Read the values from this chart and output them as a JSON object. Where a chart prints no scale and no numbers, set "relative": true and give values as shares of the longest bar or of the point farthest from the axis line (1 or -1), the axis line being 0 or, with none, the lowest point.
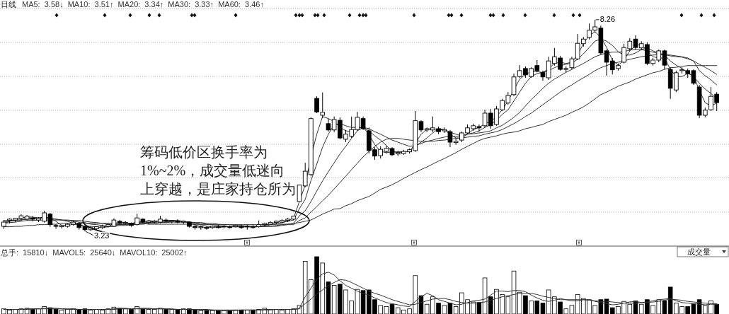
{
  "chart_data": [
    {
      "type": "candlestick",
      "title": "日线",
      "subtitle": "MA5: 3.58↓ MA10: 3.51↑ MA20: 3.34↑ MA30: 3.33↑ MA60: 3.46↑",
      "grid": "y",
      "color": "#000000",
      "ylim": [
        2.88,
        8.52
      ],
      "yticks": [
        {
          "value": 3.69,
          "label": null
        },
        {
          "value": 4.5,
          "label": null
        },
        {
          "value": 5.3,
          "label": null
        },
        {
          "value": 6.11,
          "label": null
        },
        {
          "value": 6.91,
          "label": null
        },
        {
          "value": 7.72,
          "label": null
        },
        {
          "value": 8.52,
          "label": null
        }
      ],
      "categories": [
        null,
        null,
        null,
        null,
        null,
        null,
        null,
        null,
        null,
        null,
        null,
        null,
        null,
        null,
        null,
        null,
        null,
        null,
        null,
        null,
        null,
        null,
        null,
        null,
        null,
        null,
        null,
        null,
        null,
        null,
        null,
        null,
        null,
        null,
        null,
        null,
        null,
        null,
        null,
        null,
        null,
        null,
        null,
        null,
        null,
        null,
        null,
        null,
        null,
        null,
        null,
        null,
        null,
        null,
        null,
        null,
        null,
        null,
        null,
        null,
        null,
        null,
        null,
        null,
        null,
        null,
        null,
        null,
        null,
        null,
        null,
        null,
        null,
        null,
        null,
        null,
        null,
        null,
        null,
        null,
        null,
        null,
        null,
        null,
        null,
        null,
        null,
        null,
        null,
        null,
        null,
        null,
        null,
        null,
        null,
        null,
        null,
        null,
        null,
        null,
        null,
        null,
        null,
        null,
        null,
        null,
        null,
        null,
        null,
        null,
        null,
        null,
        null,
        null,
        null,
        null,
        null,
        null,
        null,
        null,
        null,
        null,
        null,
        null
      ],
      "ohlc": [
        [
          3.35,
          3.5,
          3.29,
          3.45
        ],
        [
          3.49,
          3.54,
          3.42,
          3.52
        ],
        [
          3.5,
          3.55,
          3.45,
          3.54
        ],
        [
          3.54,
          3.64,
          3.49,
          3.6
        ],
        [
          3.52,
          3.62,
          3.49,
          3.59
        ],
        [
          3.55,
          3.59,
          3.47,
          3.52
        ],
        [
          3.5,
          3.57,
          3.45,
          3.54
        ],
        [
          3.47,
          3.72,
          3.44,
          3.67
        ],
        [
          3.64,
          3.67,
          3.34,
          3.39
        ],
        [
          3.37,
          3.4,
          3.29,
          3.35
        ],
        [
          3.34,
          3.39,
          3.3,
          3.37
        ],
        [
          3.35,
          3.42,
          3.32,
          3.4
        ],
        [
          3.4,
          3.49,
          3.37,
          3.45
        ],
        [
          3.42,
          3.45,
          3.27,
          3.32
        ],
        [
          3.34,
          3.37,
          3.23,
          3.27
        ],
        [
          3.27,
          3.35,
          3.24,
          3.32
        ],
        [
          3.29,
          3.35,
          3.26,
          3.34
        ],
        [
          3.32,
          3.39,
          3.29,
          3.35
        ],
        [
          3.35,
          3.42,
          3.32,
          3.39
        ],
        [
          3.35,
          3.54,
          3.34,
          3.5
        ],
        [
          3.47,
          3.5,
          3.39,
          3.42
        ],
        [
          3.42,
          3.47,
          3.39,
          3.44
        ],
        [
          3.42,
          3.44,
          3.34,
          3.37
        ],
        [
          3.39,
          3.65,
          3.37,
          3.55
        ],
        [
          3.52,
          3.54,
          3.42,
          3.45
        ],
        [
          3.44,
          3.49,
          3.4,
          3.47
        ],
        [
          3.45,
          3.5,
          3.42,
          3.47
        ],
        [
          3.45,
          3.6,
          3.42,
          3.52
        ],
        [
          3.5,
          3.54,
          3.44,
          3.47
        ],
        [
          3.47,
          3.5,
          3.42,
          3.49
        ],
        [
          3.47,
          3.52,
          3.42,
          3.45
        ],
        [
          3.45,
          3.49,
          3.4,
          3.47
        ],
        [
          3.45,
          3.47,
          3.32,
          3.35
        ],
        [
          3.35,
          3.4,
          3.27,
          3.32
        ],
        [
          3.32,
          3.37,
          3.27,
          3.34
        ],
        [
          3.32,
          3.35,
          3.27,
          3.3
        ],
        [
          3.32,
          3.37,
          3.29,
          3.35
        ],
        [
          3.34,
          3.39,
          3.3,
          3.32
        ],
        [
          3.34,
          3.39,
          3.3,
          3.35
        ],
        [
          3.34,
          3.37,
          3.3,
          3.32
        ],
        [
          3.34,
          3.39,
          3.32,
          3.37
        ],
        [
          3.35,
          3.39,
          3.29,
          3.32
        ],
        [
          3.34,
          3.39,
          3.27,
          3.35
        ],
        [
          3.34,
          3.39,
          3.29,
          3.32
        ],
        [
          3.34,
          3.49,
          3.32,
          3.39
        ],
        [
          3.39,
          3.44,
          3.35,
          3.42
        ],
        [
          3.4,
          3.47,
          3.39,
          3.44
        ],
        [
          3.44,
          3.49,
          3.4,
          3.47
        ],
        [
          3.45,
          3.52,
          3.42,
          3.49
        ],
        [
          3.49,
          3.55,
          3.45,
          3.52
        ],
        [
          3.52,
          3.6,
          3.49,
          3.59
        ],
        [
          3.94,
          4.33,
          3.94,
          4.33
        ],
        [
          4.31,
          4.86,
          4.28,
          4.66
        ],
        [
          4.58,
          5.94,
          4.54,
          5.91
        ],
        [
          6.39,
          6.44,
          6.04,
          6.07
        ],
        [
          5.99,
          6.53,
          5.92,
          6.06
        ],
        [
          5.79,
          5.91,
          5.6,
          5.64
        ],
        [
          5.64,
          5.96,
          5.59,
          5.89
        ],
        [
          5.87,
          5.94,
          5.42,
          5.45
        ],
        [
          5.42,
          5.64,
          5.35,
          5.54
        ],
        [
          5.49,
          5.96,
          5.45,
          5.65
        ],
        [
          5.65,
          6.07,
          5.62,
          5.94
        ],
        [
          5.91,
          5.96,
          5.64,
          5.67
        ],
        [
          5.62,
          5.7,
          5.08,
          5.15
        ],
        [
          5.17,
          5.23,
          4.93,
          5.02
        ],
        [
          5.03,
          5.25,
          4.96,
          5.18
        ],
        [
          5.13,
          5.27,
          5.08,
          5.2
        ],
        [
          5.2,
          5.23,
          5.02,
          5.05
        ],
        [
          5.07,
          5.15,
          5.02,
          5.1
        ],
        [
          5.08,
          5.17,
          5.05,
          5.13
        ],
        [
          5.12,
          5.2,
          5.08,
          5.17
        ],
        [
          5.15,
          6.09,
          5.12,
          5.86
        ],
        [
          5.84,
          5.87,
          5.59,
          5.64
        ],
        [
          5.64,
          5.7,
          5.59,
          5.67
        ],
        [
          5.64,
          5.96,
          5.59,
          5.69
        ],
        [
          5.67,
          5.72,
          5.54,
          5.6
        ],
        [
          5.62,
          5.7,
          5.57,
          5.65
        ],
        [
          5.6,
          5.64,
          5.23,
          5.35
        ],
        [
          5.34,
          5.44,
          5.29,
          5.37
        ],
        [
          5.4,
          5.6,
          5.35,
          5.57
        ],
        [
          5.57,
          5.77,
          5.54,
          5.69
        ],
        [
          5.67,
          5.79,
          5.62,
          5.74
        ],
        [
          5.72,
          5.77,
          5.6,
          5.69
        ],
        [
          5.74,
          6.12,
          5.7,
          6.04
        ],
        [
          6.04,
          6.14,
          5.67,
          5.74
        ],
        [
          5.77,
          6.21,
          5.74,
          6.14
        ],
        [
          6.12,
          6.38,
          6.09,
          6.34
        ],
        [
          6.28,
          6.54,
          6.24,
          6.46
        ],
        [
          6.48,
          6.98,
          6.44,
          6.9
        ],
        [
          6.91,
          7.18,
          6.88,
          7.05
        ],
        [
          7.1,
          7.15,
          6.88,
          6.95
        ],
        [
          6.91,
          7.13,
          6.88,
          7.1
        ],
        [
          7.17,
          7.3,
          7.01,
          7.05
        ],
        [
          7.01,
          7.05,
          6.81,
          6.9
        ],
        [
          6.88,
          7.38,
          6.83,
          7.28
        ],
        [
          7.22,
          7.59,
          7.17,
          7.38
        ],
        [
          7.35,
          7.4,
          7.05,
          7.08
        ],
        [
          7.08,
          7.15,
          7.01,
          7.1
        ],
        [
          7.12,
          7.38,
          7.08,
          7.33
        ],
        [
          7.33,
          7.92,
          7.3,
          7.7
        ],
        [
          7.69,
          7.85,
          7.62,
          7.8
        ],
        [
          7.84,
          8.17,
          7.79,
          8.01
        ],
        [
          8.01,
          8.26,
          7.96,
          8.09
        ],
        [
          8.06,
          8.12,
          7.43,
          7.47
        ],
        [
          7.52,
          7.55,
          6.93,
          7.25
        ],
        [
          7.28,
          7.35,
          6.96,
          7.07
        ],
        [
          7.1,
          7.22,
          7.05,
          7.17
        ],
        [
          7.25,
          7.69,
          7.22,
          7.6
        ],
        [
          7.57,
          7.82,
          7.52,
          7.75
        ],
        [
          7.8,
          7.89,
          7.55,
          7.6
        ],
        [
          7.59,
          7.75,
          7.54,
          7.69
        ],
        [
          7.67,
          7.72,
          7.18,
          7.22
        ],
        [
          7.22,
          7.35,
          7.17,
          7.3
        ],
        [
          7.3,
          7.55,
          7.25,
          7.52
        ],
        [
          7.52,
          7.55,
          7.08,
          7.18
        ],
        [
          7.08,
          7.12,
          6.38,
          6.63
        ],
        [
          6.59,
          7.05,
          6.54,
          7.0
        ],
        [
          7.05,
          7.13,
          6.98,
          7.07
        ],
        [
          7.05,
          7.1,
          6.88,
          6.98
        ],
        [
          7.05,
          7.08,
          6.71,
          6.75
        ],
        [
          6.66,
          6.71,
          5.92,
          5.99
        ],
        [
          5.99,
          6.17,
          5.94,
          6.11
        ],
        [
          6.12,
          6.66,
          6.09,
          6.44
        ],
        [
          6.49,
          6.54,
          6.09,
          6.29
        ]
      ],
      "series": [
        {
          "type": "line",
          "color": "#333333",
          "values": [
            3.42,
            3.47,
            3.5,
            3.55,
            3.57,
            3.57,
            3.55,
            3.57,
            3.54,
            3.47,
            3.37,
            3.37,
            3.4,
            3.39,
            3.35,
            3.3,
            3.3,
            3.34,
            3.35,
            3.42,
            3.44,
            3.45,
            3.4,
            3.45,
            3.45,
            3.49,
            3.47,
            3.49,
            3.49,
            3.49,
            3.47,
            3.47,
            3.42,
            3.39,
            3.34,
            3.32,
            3.34,
            3.32,
            3.34,
            3.34,
            3.35,
            3.34,
            3.35,
            3.34,
            3.35,
            3.37,
            3.42,
            3.44,
            3.47,
            3.49,
            3.54,
            3.94,
            4.33,
            5.0,
            5.54,
            5.96,
            5.91,
            5.84,
            5.7,
            5.62,
            5.6,
            5.7,
            5.7,
            5.54,
            5.29,
            5.13,
            5.1,
            5.12,
            5.12,
            5.12,
            5.13,
            5.32,
            5.54,
            5.65,
            5.67,
            5.65,
            5.64,
            5.54,
            5.45,
            5.45,
            5.54,
            5.65,
            5.7,
            5.79,
            5.84,
            5.96,
            6.12,
            6.33,
            6.59,
            6.85,
            6.96,
            7.03,
            7.03,
            7.0,
            7.1,
            7.22,
            7.25,
            7.22,
            7.25,
            7.43,
            7.69,
            7.89,
            7.97,
            7.85,
            7.6,
            7.3,
            7.18,
            7.3,
            7.52,
            7.65,
            7.67,
            7.52,
            7.38,
            7.35,
            7.35,
            7.08,
            6.91,
            6.91,
            6.98,
            6.93,
            6.58,
            6.29,
            6.21,
            6.28
          ]
        },
        {
          "type": "line",
          "color": "#333333",
          "values": [
            3.45,
            3.47,
            3.49,
            3.5,
            3.54,
            3.55,
            3.55,
            3.57,
            3.54,
            3.52,
            3.5,
            3.47,
            3.42,
            3.39,
            3.35,
            3.35,
            3.34,
            3.32,
            3.34,
            3.37,
            3.39,
            3.4,
            3.42,
            3.45,
            3.45,
            3.45,
            3.47,
            3.47,
            3.47,
            3.49,
            3.49,
            3.47,
            3.45,
            3.42,
            3.39,
            3.35,
            3.34,
            3.34,
            3.34,
            3.34,
            3.34,
            3.34,
            3.34,
            3.34,
            3.35,
            3.35,
            3.39,
            3.4,
            3.44,
            3.47,
            3.5,
            3.77,
            3.99,
            4.44,
            4.83,
            5.23,
            5.54,
            5.77,
            5.79,
            5.74,
            5.7,
            5.7,
            5.69,
            5.62,
            5.5,
            5.4,
            5.27,
            5.13,
            5.1,
            5.12,
            5.13,
            5.25,
            5.35,
            5.45,
            5.57,
            5.67,
            5.65,
            5.59,
            5.54,
            5.5,
            5.54,
            5.57,
            5.62,
            5.7,
            5.77,
            5.87,
            6.01,
            6.12,
            6.33,
            6.54,
            6.75,
            6.91,
            6.98,
            7.01,
            7.05,
            7.12,
            7.17,
            7.2,
            7.23,
            7.32,
            7.45,
            7.6,
            7.75,
            7.8,
            7.75,
            7.65,
            7.5,
            7.42,
            7.42,
            7.47,
            7.55,
            7.59,
            7.52,
            7.47,
            7.42,
            7.28,
            7.18,
            7.1,
            7.01,
            6.91,
            6.75,
            6.61,
            6.51,
            6.38
          ]
        },
        {
          "type": "line",
          "color": "#333333",
          "values": [
            3.49,
            3.49,
            3.5,
            3.5,
            3.52,
            3.52,
            3.54,
            3.54,
            3.54,
            3.52,
            3.5,
            3.49,
            3.47,
            3.45,
            3.44,
            3.4,
            3.39,
            3.37,
            3.35,
            3.35,
            3.37,
            3.37,
            3.39,
            3.4,
            3.42,
            3.44,
            3.45,
            3.45,
            3.45,
            3.47,
            3.47,
            3.47,
            3.45,
            3.44,
            3.42,
            3.4,
            3.39,
            3.37,
            3.35,
            3.34,
            3.34,
            3.34,
            3.34,
            3.34,
            3.34,
            3.35,
            3.35,
            3.37,
            3.39,
            3.4,
            3.42,
            3.6,
            3.72,
            3.94,
            4.19,
            4.43,
            4.65,
            4.86,
            5.07,
            5.25,
            5.44,
            5.62,
            5.7,
            5.67,
            5.6,
            5.54,
            5.47,
            5.4,
            5.35,
            5.3,
            5.25,
            5.27,
            5.32,
            5.37,
            5.4,
            5.44,
            5.47,
            5.49,
            5.49,
            5.5,
            5.54,
            5.55,
            5.57,
            5.59,
            5.62,
            5.69,
            5.75,
            5.84,
            5.94,
            6.06,
            6.21,
            6.36,
            6.49,
            6.63,
            6.75,
            6.85,
            6.93,
            7.01,
            7.08,
            7.15,
            7.22,
            7.3,
            7.38,
            7.43,
            7.47,
            7.49,
            7.49,
            7.5,
            7.54,
            7.55,
            7.55,
            7.52,
            7.49,
            7.45,
            7.43,
            7.4,
            7.38,
            7.37,
            7.33,
            7.28,
            7.05,
            6.93,
            6.83,
            6.71
          ]
        },
        {
          "type": "line",
          "color": "#333333",
          "values": [
            3.42,
            3.44,
            3.45,
            3.47,
            3.49,
            3.49,
            3.5,
            3.5,
            3.5,
            3.5,
            3.5,
            3.5,
            3.49,
            3.49,
            3.47,
            3.45,
            3.44,
            3.42,
            3.4,
            3.4,
            3.39,
            3.39,
            3.39,
            3.4,
            3.4,
            3.42,
            3.42,
            3.44,
            3.44,
            3.45,
            3.45,
            3.45,
            3.45,
            3.44,
            3.44,
            3.42,
            3.42,
            3.4,
            3.39,
            3.39,
            3.37,
            3.37,
            3.35,
            3.35,
            3.35,
            3.35,
            3.35,
            3.35,
            3.37,
            3.39,
            3.39,
            3.49,
            3.55,
            3.69,
            3.82,
            3.96,
            4.09,
            4.24,
            4.39,
            4.54,
            4.7,
            4.85,
            5.0,
            5.13,
            5.25,
            5.35,
            5.42,
            5.44,
            5.44,
            5.42,
            5.4,
            5.39,
            5.37,
            5.37,
            5.37,
            5.39,
            5.4,
            5.42,
            5.44,
            5.45,
            5.47,
            5.49,
            5.5,
            5.54,
            5.57,
            5.6,
            5.65,
            5.72,
            5.79,
            5.87,
            5.96,
            6.04,
            6.14,
            6.24,
            6.34,
            6.44,
            6.54,
            6.63,
            6.71,
            6.8,
            6.88,
            6.96,
            7.05,
            7.12,
            7.17,
            7.22,
            7.25,
            7.28,
            7.32,
            7.35,
            7.38,
            7.4,
            7.42,
            7.43,
            7.43,
            7.42,
            7.4,
            7.38,
            7.35,
            7.28,
            7.2,
            7.13,
            7.05,
            6.96
          ]
        },
        {
          "type": "line",
          "color": "#333333",
          "values": [
            3.34,
            3.34,
            3.35,
            3.35,
            3.37,
            3.37,
            3.39,
            3.39,
            3.4,
            3.4,
            3.42,
            3.42,
            3.42,
            3.42,
            3.42,
            3.42,
            3.42,
            3.42,
            3.42,
            3.42,
            3.42,
            3.42,
            3.42,
            3.42,
            3.42,
            3.4,
            3.4,
            3.4,
            3.4,
            3.4,
            3.4,
            3.4,
            3.4,
            3.4,
            3.39,
            3.39,
            3.39,
            3.39,
            3.39,
            3.39,
            3.39,
            3.39,
            3.39,
            3.39,
            3.39,
            3.39,
            3.4,
            3.4,
            3.4,
            3.4,
            3.42,
            3.44,
            3.47,
            3.5,
            3.57,
            3.64,
            3.7,
            3.76,
            3.77,
            3.84,
            3.89,
            3.96,
            4.01,
            4.06,
            4.14,
            4.23,
            4.28,
            4.34,
            4.41,
            4.49,
            4.56,
            4.63,
            4.7,
            4.76,
            4.83,
            4.9,
            4.96,
            5.03,
            5.1,
            5.18,
            5.25,
            5.32,
            5.39,
            5.44,
            5.47,
            5.5,
            5.54,
            5.57,
            5.59,
            5.62,
            5.67,
            5.7,
            5.74,
            5.77,
            5.84,
            5.89,
            5.94,
            5.99,
            6.06,
            6.12,
            6.19,
            6.28,
            6.38,
            6.48,
            6.54,
            6.61,
            6.68,
            6.73,
            6.78,
            6.85,
            6.9,
            6.95,
            7.0,
            7.03,
            7.08,
            7.12,
            7.13,
            7.15,
            7.17,
            7.17,
            7.17,
            7.17,
            7.17,
            7.17
          ]
        }
      ],
      "annotations": [
        "筹码低价区换手率为",
        "1%~2%，成交量低迷向",
        "上穿越，是庄家持仓所为",
        {
          "text": "3.23",
          "y": 3.23
        },
        "8.26"
      ]
    },
    {
      "type": "bar",
      "title": "成交量",
      "subtitle": "总手: 15810↓ MAVOL5: 25640↓ MAVOL10: 25002↑",
      "relative": true,
      "categories": [
        null,
        null,
        null,
        null,
        null,
        null,
        null,
        null,
        null,
        null,
        null,
        null,
        null,
        null,
        null,
        null,
        null,
        null,
        null,
        null,
        null,
        null,
        null,
        null,
        null,
        null,
        null,
        null,
        null,
        null,
        null,
        null,
        null,
        null,
        null,
        null,
        null,
        null,
        null,
        null,
        null,
        null,
        null,
        null,
        null,
        null,
        null,
        null,
        null,
        null,
        null,
        null,
        null,
        null,
        null,
        null,
        null,
        null,
        null,
        null,
        null,
        null,
        null,
        null,
        null,
        null,
        null,
        null,
        null,
        null,
        null,
        null,
        null,
        null,
        null,
        null,
        null,
        null,
        null,
        null,
        null,
        null,
        null,
        null,
        null,
        null,
        null,
        null,
        null,
        null,
        null,
        null,
        null,
        null,
        null,
        null,
        null,
        null,
        null,
        null,
        null,
        null,
        null,
        null,
        null,
        null,
        null,
        null,
        null,
        null,
        null,
        null,
        null,
        null,
        null,
        null,
        null,
        null,
        null,
        null,
        null,
        null,
        null,
        null
      ],
      "series": [
        {
          "values": [
            0.09,
            0.07,
            0.08,
            0.09,
            0.1,
            0.08,
            0.09,
            0.13,
            0.11,
            0.08,
            0.07,
            0.08,
            0.09,
            0.08,
            0.09,
            0.07,
            0.08,
            0.07,
            0.09,
            0.12,
            0.1,
            0.09,
            0.08,
            0.13,
            0.09,
            0.08,
            0.08,
            0.1,
            0.08,
            0.08,
            0.08,
            0.09,
            0.09,
            0.07,
            0.06,
            0.06,
            0.06,
            0.06,
            0.06,
            0.06,
            0.07,
            0.07,
            0.07,
            0.07,
            0.08,
            0.1,
            0.08,
            0.08,
            0.07,
            0.08,
            0.09,
            0.15,
            0.92,
            0.6,
            1,
            0.89,
            0.56,
            0.5,
            0.52,
            0.42,
            0.23,
            0.43,
            0.41,
            0.42,
            0.25,
            0.15,
            0.13,
            0.17,
            0.11,
            0.07,
            0.09,
            0.67,
            0.32,
            0.17,
            0.3,
            0.19,
            0.15,
            0.19,
            0.13,
            0.37,
            0.25,
            0.21,
            0.2,
            0.63,
            0.3,
            0.43,
            0.34,
            0.3,
            0.75,
            0.38,
            0.32,
            0.23,
            0.23,
            0.19,
            0.42,
            0.3,
            0.21,
            0.09,
            0.15,
            0.34,
            0.27,
            0.25,
            0.15,
            0.25,
            0.26,
            0.11,
            0.13,
            0.22,
            0.17,
            0.23,
            0.17,
            0.25,
            0.15,
            0.25,
            0.23,
            0.47,
            0.19,
            0.13,
            0.13,
            0.18,
            0.25,
            0.15,
            0.23,
            0.17
          ],
          "colors": [
            "#ffffff",
            "#ffffff",
            "#ffffff",
            "#ffffff",
            "#ffffff",
            "#000000",
            "#ffffff",
            "#ffffff",
            "#000000",
            "#000000",
            "#ffffff",
            "#ffffff",
            "#ffffff",
            "#000000",
            "#000000",
            "#ffffff",
            "#ffffff",
            "#ffffff",
            "#ffffff",
            "#ffffff",
            "#000000",
            "#ffffff",
            "#000000",
            "#ffffff",
            "#000000",
            "#ffffff",
            "#ffffff",
            "#ffffff",
            "#000000",
            "#ffffff",
            "#000000",
            "#ffffff",
            "#000000",
            "#000000",
            "#ffffff",
            "#000000",
            "#ffffff",
            "#000000",
            "#ffffff",
            "#000000",
            "#ffffff",
            "#000000",
            "#ffffff",
            "#000000",
            "#ffffff",
            "#ffffff",
            "#ffffff",
            "#ffffff",
            "#ffffff",
            "#ffffff",
            "#ffffff",
            "#ffffff",
            "#ffffff",
            "#ffffff",
            "#000000",
            "#ffffff",
            "#000000",
            "#ffffff",
            "#000000",
            "#ffffff",
            "#ffffff",
            "#ffffff",
            "#000000",
            "#000000",
            "#000000",
            "#ffffff",
            "#ffffff",
            "#000000",
            "#ffffff",
            "#ffffff",
            "#ffffff",
            "#ffffff",
            "#000000",
            "#ffffff",
            "#ffffff",
            "#000000",
            "#ffffff",
            "#000000",
            "#ffffff",
            "#ffffff",
            "#ffffff",
            "#ffffff",
            "#000000",
            "#ffffff",
            "#000000",
            "#ffffff",
            "#ffffff",
            "#ffffff",
            "#ffffff",
            "#ffffff",
            "#000000",
            "#ffffff",
            "#000000",
            "#000000",
            "#ffffff",
            "#ffffff",
            "#000000",
            "#ffffff",
            "#ffffff",
            "#ffffff",
            "#ffffff",
            "#ffffff",
            "#ffffff",
            "#000000",
            "#000000",
            "#000000",
            "#ffffff",
            "#ffffff",
            "#ffffff",
            "#000000",
            "#ffffff",
            "#000000",
            "#ffffff",
            "#ffffff",
            "#000000",
            "#000000",
            "#ffffff",
            "#ffffff",
            "#000000",
            "#000000",
            "#000000",
            "#ffffff",
            "#ffffff",
            "#000000"
          ]
        },
        {
          "type": "line",
          "color": "#333333",
          "values": [
            0.08,
            0.08,
            0.08,
            0.08,
            0.09,
            0.09,
            0.09,
            0.1,
            0.1,
            0.1,
            0.09,
            0.08,
            0.08,
            0.08,
            0.08,
            0.08,
            0.08,
            0.08,
            0.08,
            0.09,
            0.1,
            0.1,
            0.09,
            0.1,
            0.1,
            0.1,
            0.09,
            0.09,
            0.09,
            0.08,
            0.08,
            0.08,
            0.08,
            0.08,
            0.07,
            0.07,
            0.07,
            0.06,
            0.06,
            0.06,
            0.06,
            0.07,
            0.07,
            0.07,
            0.07,
            0.08,
            0.08,
            0.08,
            0.08,
            0.08,
            0.08,
            0.1,
            0.3,
            0.45,
            0.6,
            0.7,
            0.73,
            0.68,
            0.58,
            0.5,
            0.45,
            0.4,
            0.36,
            0.33,
            0.28,
            0.24,
            0.2,
            0.18,
            0.16,
            0.14,
            0.13,
            0.22,
            0.3,
            0.36,
            0.32,
            0.25,
            0.22,
            0.19,
            0.16,
            0.17,
            0.2,
            0.23,
            0.24,
            0.26,
            0.33,
            0.4,
            0.4,
            0.39,
            0.41,
            0.41,
            0.39,
            0.33,
            0.28,
            0.24,
            0.22,
            0.24,
            0.27,
            0.25,
            0.23,
            0.23,
            0.25,
            0.25,
            0.22,
            0.2,
            0.18,
            0.16,
            0.17,
            0.19,
            0.21,
            0.22,
            0.2,
            0.21,
            0.23,
            0.25,
            0.26,
            0.27,
            0.23,
            0.2,
            0.19,
            0.18,
            0.17,
            0.16,
            0.17,
            0.17
          ]
        },
        {
          "type": "line",
          "color": "#333333",
          "values": [
            0.08,
            0.08,
            0.08,
            0.08,
            0.08,
            0.09,
            0.09,
            0.09,
            0.09,
            0.09,
            0.09,
            0.09,
            0.09,
            0.08,
            0.08,
            0.08,
            0.08,
            0.08,
            0.08,
            0.08,
            0.09,
            0.09,
            0.09,
            0.09,
            0.09,
            0.09,
            0.09,
            0.09,
            0.09,
            0.09,
            0.08,
            0.08,
            0.08,
            0.08,
            0.08,
            0.08,
            0.07,
            0.07,
            0.07,
            0.07,
            0.07,
            0.07,
            0.07,
            0.07,
            0.07,
            0.07,
            0.07,
            0.08,
            0.08,
            0.08,
            0.08,
            0.09,
            0.18,
            0.26,
            0.35,
            0.42,
            0.5,
            0.55,
            0.6,
            0.59,
            0.55,
            0.5,
            0.45,
            0.4,
            0.36,
            0.33,
            0.29,
            0.25,
            0.22,
            0.19,
            0.16,
            0.17,
            0.2,
            0.23,
            0.26,
            0.27,
            0.27,
            0.25,
            0.22,
            0.2,
            0.19,
            0.19,
            0.2,
            0.21,
            0.24,
            0.27,
            0.3,
            0.32,
            0.34,
            0.36,
            0.36,
            0.36,
            0.34,
            0.31,
            0.29,
            0.27,
            0.25,
            0.25,
            0.25,
            0.25,
            0.25,
            0.24,
            0.23,
            0.22,
            0.22,
            0.21,
            0.2,
            0.19,
            0.19,
            0.19,
            0.2,
            0.2,
            0.21,
            0.22,
            0.24,
            0.26,
            0.25,
            0.24,
            0.22,
            0.21,
            0.2,
            0.19,
            0.18,
            0.18
          ]
        }
      ]
    }
  ]
}
